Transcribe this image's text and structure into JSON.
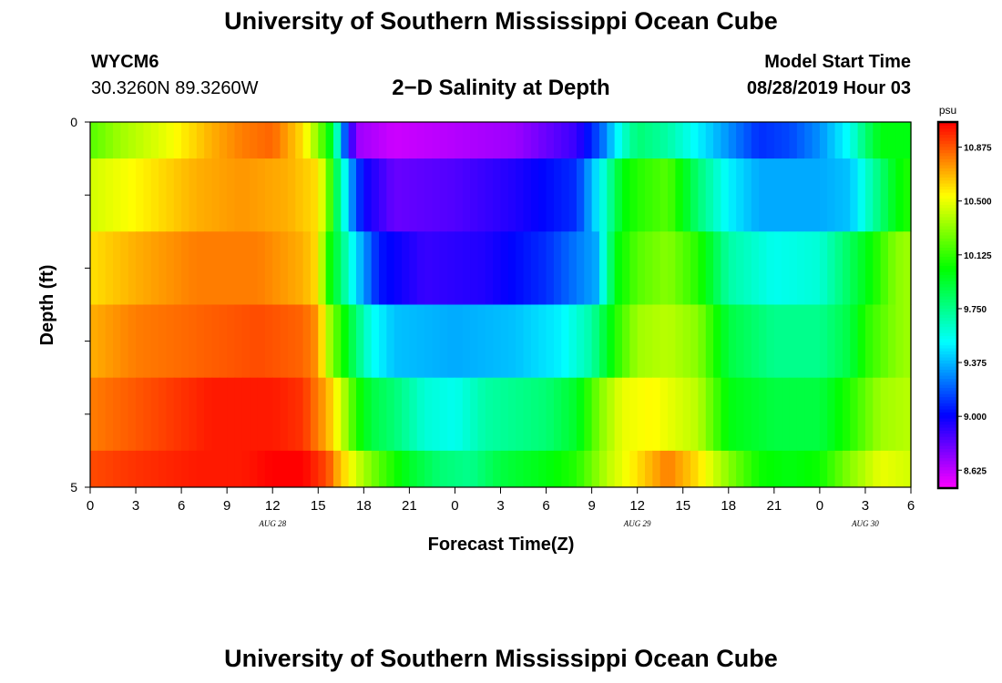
{
  "page": {
    "title": "University of Southern Mississippi Ocean Cube",
    "footer_title": "University of Southern Mississippi Ocean Cube",
    "station": {
      "id": "WYCM6",
      "coords": "30.3260N 89.3260W"
    },
    "model_start": {
      "label": "Model Start Time",
      "value": "08/28/2019 Hour 03"
    }
  },
  "chart_data": {
    "type": "heatmap",
    "title": "2−D Salinity at Depth",
    "xlabel": "Forecast Time(Z)",
    "ylabel": "Depth (ft)",
    "colorbar_unit": "psu",
    "colorbar_ticks": [
      "10.875",
      "10.500",
      "10.125",
      "9.750",
      "9.375",
      "9.000",
      "8.625"
    ],
    "colorbar_tick_values": [
      10.875,
      10.5,
      10.125,
      9.75,
      9.375,
      9.0,
      8.625
    ],
    "colorbar_range": [
      8.5,
      11.05
    ],
    "y_ticks": [
      "0",
      "5"
    ],
    "ylim": [
      0,
      5
    ],
    "x_tick_labels": [
      "0",
      "3",
      "6",
      "9",
      "12",
      "15",
      "18",
      "21",
      "0",
      "3",
      "6",
      "9",
      "12",
      "15",
      "18",
      "21",
      "0",
      "3",
      "6"
    ],
    "x_range_hours": [
      0,
      54
    ],
    "date_labels": [
      {
        "text": "AUG 28",
        "at_hour": 12
      },
      {
        "text": "AUG 29",
        "at_hour": 36
      },
      {
        "text": "AUG 30",
        "at_hour": 51
      }
    ],
    "rows": [
      {
        "depth_range": "0-0.5",
        "hours": [
          0,
          2,
          5,
          8,
          10,
          12,
          14,
          15,
          16,
          16.6,
          17.5,
          20,
          24,
          28,
          32,
          33.6,
          35,
          36,
          38,
          40,
          42,
          44,
          46,
          48,
          50,
          51,
          52,
          54
        ],
        "values": [
          10.2,
          10.35,
          10.5,
          10.7,
          10.8,
          10.85,
          10.6,
          10.3,
          9.9,
          9.3,
          8.7,
          8.6,
          8.65,
          8.7,
          8.9,
          9.2,
          9.6,
          9.8,
          9.7,
          9.5,
          9.3,
          9.1,
          9.15,
          9.3,
          9.55,
          9.8,
          10.0,
          10.0
        ]
      },
      {
        "depth_range": "0.5-1.5",
        "hours": [
          0,
          3,
          7,
          10,
          13,
          15,
          15.5,
          16.3,
          17.3,
          18,
          20,
          24,
          28,
          32,
          33.8,
          35,
          36,
          38,
          40,
          42,
          44,
          48,
          50,
          51,
          53,
          54
        ],
        "values": [
          10.45,
          10.55,
          10.7,
          10.75,
          10.7,
          10.6,
          10.35,
          9.8,
          9.25,
          9.0,
          8.8,
          8.85,
          8.95,
          9.1,
          9.6,
          10.0,
          10.1,
          10.2,
          9.8,
          9.5,
          9.35,
          9.35,
          9.4,
          9.6,
          10.0,
          10.1
        ]
      },
      {
        "depth_range": "1.5-2.5",
        "hours": [
          0,
          3,
          7,
          11,
          14,
          15,
          15.6,
          16.5,
          17.5,
          19,
          22,
          26,
          30,
          33.3,
          34.6,
          36,
          38,
          40,
          42,
          45,
          48,
          50,
          51.5,
          53,
          54
        ],
        "values": [
          10.6,
          10.7,
          10.8,
          10.8,
          10.7,
          10.6,
          10.1,
          9.8,
          9.45,
          9.05,
          8.9,
          8.95,
          9.1,
          9.35,
          10.0,
          10.2,
          10.3,
          10.1,
          9.7,
          9.55,
          9.6,
          9.85,
          10.05,
          10.3,
          10.35
        ]
      },
      {
        "depth_range": "2.5-3.5",
        "hours": [
          0,
          3,
          7,
          11,
          14,
          15,
          15.6,
          16.5,
          17.5,
          18.5,
          20,
          24,
          28,
          31,
          33,
          34.6,
          36,
          38,
          40,
          42,
          45,
          48,
          50,
          51,
          53,
          54
        ],
        "values": [
          10.7,
          10.8,
          10.85,
          10.9,
          10.85,
          10.75,
          10.4,
          10.1,
          9.8,
          9.55,
          9.4,
          9.35,
          9.4,
          9.5,
          9.7,
          10.1,
          10.35,
          10.4,
          10.3,
          9.9,
          9.75,
          9.75,
          9.9,
          10.1,
          10.3,
          10.35
        ]
      },
      {
        "depth_range": "3.5-4.5",
        "hours": [
          0,
          4,
          8,
          12,
          14,
          15.6,
          16.5,
          17.5,
          18.5,
          20,
          22,
          24,
          26,
          30,
          32,
          33.6,
          35,
          37,
          40,
          42,
          45,
          48,
          50,
          52,
          54
        ],
        "values": [
          10.8,
          10.9,
          11.0,
          11.0,
          10.95,
          10.7,
          10.45,
          10.1,
          9.9,
          9.8,
          9.6,
          9.55,
          9.7,
          9.8,
          9.95,
          10.3,
          10.5,
          10.55,
          10.4,
          10.0,
          9.9,
          9.9,
          10.1,
          10.35,
          10.4
        ]
      },
      {
        "depth_range": "4.5-5",
        "hours": [
          0,
          3,
          7,
          10,
          12,
          14,
          15.6,
          16.3,
          17.5,
          19,
          21,
          23,
          25,
          27,
          30,
          32,
          34,
          36,
          38,
          40,
          42,
          44,
          46,
          48,
          50,
          52,
          54
        ],
        "values": [
          10.9,
          10.95,
          11.0,
          11.0,
          11.05,
          11.05,
          10.9,
          10.7,
          10.45,
          10.2,
          9.95,
          9.8,
          9.75,
          9.9,
          10.0,
          10.1,
          10.4,
          10.6,
          10.8,
          10.6,
          10.3,
          10.05,
          10.0,
          10.05,
          10.3,
          10.5,
          10.45
        ]
      }
    ]
  }
}
